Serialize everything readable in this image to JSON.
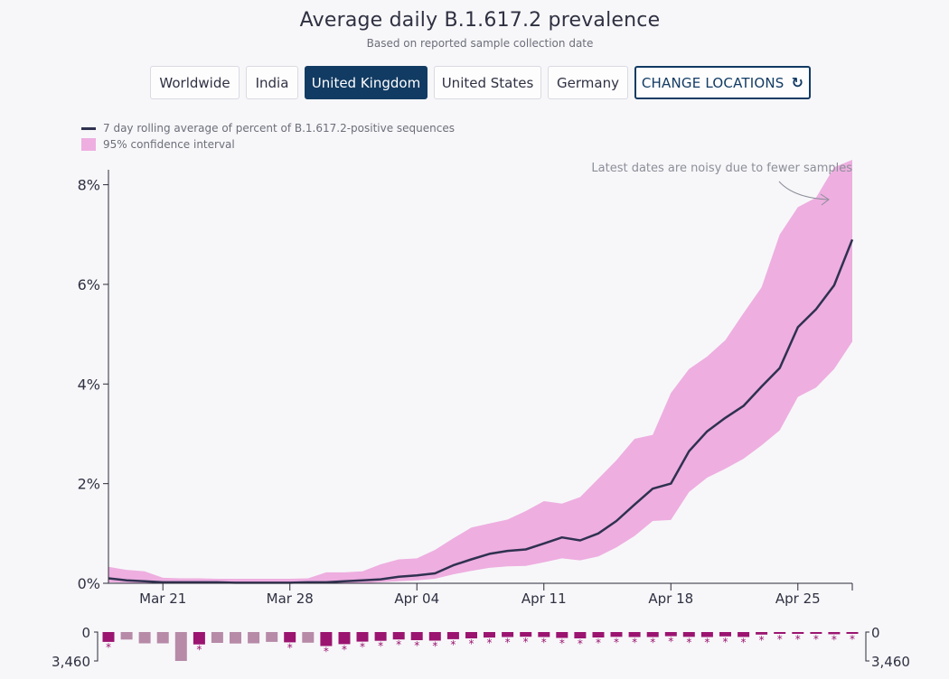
{
  "title": "Average daily B.1.617.2 prevalence",
  "subtitle": "Based on reported sample collection date",
  "location_buttons": [
    {
      "label": "Worldwide",
      "active": false
    },
    {
      "label": "India",
      "active": false
    },
    {
      "label": "United Kingdom",
      "active": true
    },
    {
      "label": "United States",
      "active": false
    },
    {
      "label": "Germany",
      "active": false
    }
  ],
  "change_locations_label": "CHANGE LOCATIONS",
  "change_locations_icon": "refresh-icon",
  "legend": {
    "line_label": "7 day rolling average of percent of B.1.617.2-positive sequences",
    "band_label": "95% confidence interval"
  },
  "colors": {
    "line": "#2f3150",
    "band": "#eeaee0",
    "bar_dark": "#9b1470",
    "bar_light": "#b78aa8",
    "active_button": "#123b63"
  },
  "annotation": "Latest dates are noisy due to fewer samples",
  "chart_data": {
    "type": "line",
    "title": "Average daily B.1.617.2 prevalence",
    "subtitle": "Based on reported sample collection date",
    "y_ticks": [
      "0%",
      "2%",
      "4%",
      "6%",
      "8%"
    ],
    "ylim": [
      0,
      8.5
    ],
    "x_tick_labels": [
      "Mar 21",
      "Mar 28",
      "Apr 04",
      "Apr 11",
      "Apr 18",
      "Apr 25"
    ],
    "x_tick_days": [
      3,
      10,
      17,
      24,
      31,
      38
    ],
    "x_range_days": [
      0,
      41
    ],
    "series": [
      {
        "name": "7 day rolling average of percent of B.1.617.2-positive sequences",
        "values": [
          0.1,
          0.06,
          0.04,
          0.02,
          0.02,
          0.02,
          0.02,
          0.01,
          0.01,
          0.01,
          0.01,
          0.02,
          0.02,
          0.04,
          0.06,
          0.08,
          0.13,
          0.16,
          0.2,
          0.36,
          0.48,
          0.59,
          0.65,
          0.68,
          0.8,
          0.92,
          0.86,
          1.0,
          1.25,
          1.58,
          1.9,
          2.0,
          2.65,
          3.05,
          3.32,
          3.56,
          3.95,
          4.32,
          5.14,
          5.5,
          5.98,
          6.9
        ]
      }
    ],
    "ci_lower": [
      0.02,
      0.01,
      0.0,
      0.0,
      0.0,
      0.0,
      0.0,
      0.0,
      0.0,
      0.0,
      0.0,
      0.0,
      0.0,
      0.0,
      0.0,
      0.02,
      0.04,
      0.06,
      0.09,
      0.18,
      0.25,
      0.31,
      0.34,
      0.35,
      0.42,
      0.5,
      0.46,
      0.54,
      0.72,
      0.95,
      1.25,
      1.27,
      1.83,
      2.12,
      2.3,
      2.5,
      2.77,
      3.07,
      3.74,
      3.93,
      4.3,
      4.85
    ],
    "ci_upper": [
      0.33,
      0.27,
      0.24,
      0.11,
      0.1,
      0.1,
      0.09,
      0.09,
      0.09,
      0.09,
      0.09,
      0.1,
      0.22,
      0.22,
      0.24,
      0.38,
      0.48,
      0.5,
      0.67,
      0.9,
      1.12,
      1.2,
      1.28,
      1.45,
      1.65,
      1.6,
      1.73,
      2.1,
      2.47,
      2.9,
      2.98,
      3.82,
      4.3,
      4.55,
      4.88,
      5.42,
      5.94,
      7.0,
      7.55,
      7.74,
      8.35,
      8.5
    ],
    "sample_counts": {
      "axis_labels": [
        "0",
        "3,460"
      ],
      "max": 3460,
      "values": [
        1180,
        900,
        1350,
        1350,
        3460,
        1480,
        1300,
        1370,
        1350,
        1180,
        1230,
        1280,
        1680,
        1450,
        1150,
        1050,
        890,
        970,
        1030,
        850,
        760,
        660,
        590,
        560,
        590,
        700,
        760,
        650,
        570,
        600,
        600,
        500,
        570,
        600,
        520,
        580,
        300,
        200,
        120,
        220,
        260,
        90
      ],
      "low_confidence": [
        true,
        false,
        false,
        false,
        false,
        true,
        false,
        false,
        false,
        false,
        true,
        false,
        true,
        true,
        true,
        true,
        true,
        true,
        true,
        true,
        true,
        true,
        true,
        true,
        true,
        true,
        true,
        true,
        true,
        true,
        true,
        true,
        true,
        true,
        true,
        true,
        true,
        true,
        true,
        true,
        true,
        true
      ],
      "emphasized": [
        true,
        false,
        false,
        false,
        false,
        true,
        false,
        false,
        false,
        false,
        true,
        false,
        true,
        true,
        true,
        true,
        true,
        true,
        true,
        true,
        true,
        true,
        true,
        true,
        true,
        true,
        true,
        true,
        true,
        true,
        true,
        true,
        true,
        true,
        true,
        true,
        true,
        true,
        true,
        true,
        true,
        true
      ],
      "marker": "*"
    }
  }
}
